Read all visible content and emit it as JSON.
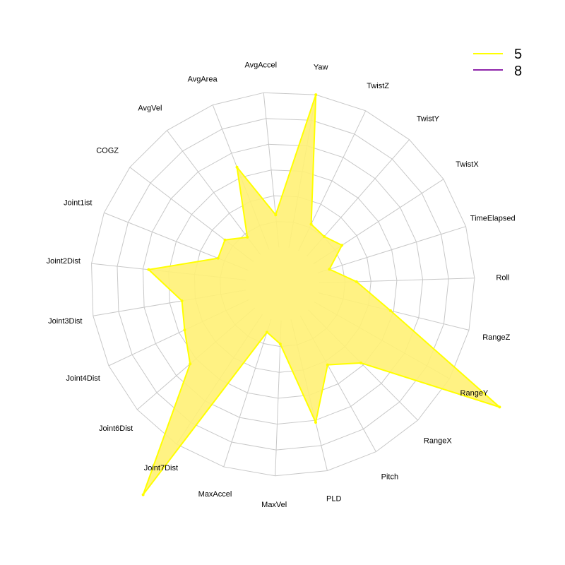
{
  "chart_data": {
    "type": "radar",
    "title": "",
    "axes": [
      "Yaw",
      "TwistZ",
      "TwistY",
      "TwistX",
      "TimeElapsed",
      "Roll",
      "RangeZ",
      "RangeY",
      "RangeX",
      "Pitch",
      "PLD",
      "MaxVel",
      "MaxAccel",
      "Joint7Dist",
      "Joint6Dist",
      "Joint4Dist",
      "Joint3Dist",
      "Joint2Dist",
      "Joint1ist",
      "COGZ",
      "AvgVel",
      "AvgArea",
      "AvgAccel"
    ],
    "rlim": [
      0,
      1
    ],
    "rings": 6,
    "grid": true,
    "legend_position": "top-right",
    "series": [
      {
        "name": "5",
        "color": "#ffff00",
        "fill": "#fff176",
        "values": [
          1.0,
          0.19,
          0.17,
          0.22,
          0.08,
          0.24,
          0.48,
          1.37,
          0.48,
          0.36,
          0.68,
          0.15,
          0.09,
          1.39,
          0.55,
          0.46,
          0.42,
          0.63,
          0.21,
          0.23,
          0.14,
          0.57,
          0.21
        ]
      },
      {
        "name": "8",
        "color": "#8e24aa",
        "values": []
      }
    ]
  }
}
